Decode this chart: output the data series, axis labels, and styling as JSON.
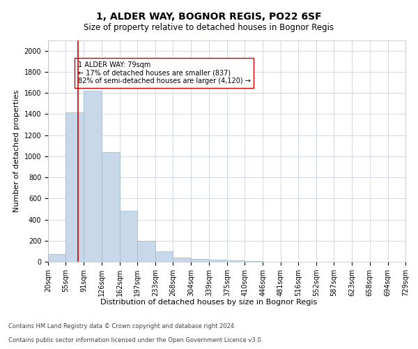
{
  "title": "1, ALDER WAY, BOGNOR REGIS, PO22 6SF",
  "subtitle": "Size of property relative to detached houses in Bognor Regis",
  "xlabel": "Distribution of detached houses by size in Bognor Regis",
  "ylabel": "Number of detached properties",
  "footer_line1": "Contains HM Land Registry data © Crown copyright and database right 2024.",
  "footer_line2": "Contains public sector information licensed under the Open Government Licence v3.0.",
  "annotation_line1": "1 ALDER WAY: 79sqm",
  "annotation_line2": "← 17% of detached houses are smaller (837)",
  "annotation_line3": "82% of semi-detached houses are larger (4,120) →",
  "bar_color": "#c8d8e8",
  "bar_edge_color": "#a0b8cc",
  "grid_color": "#d0d8e8",
  "redline_color": "#cc0000",
  "annotation_box_color": "#ffffff",
  "annotation_box_edge": "#cc0000",
  "bins": [
    20,
    55,
    91,
    126,
    162,
    197,
    233,
    268,
    304,
    339,
    375,
    410,
    446,
    481,
    516,
    552,
    587,
    623,
    658,
    694,
    729
  ],
  "counts": [
    75,
    1415,
    1620,
    1040,
    480,
    200,
    100,
    40,
    25,
    20,
    15,
    5,
    0,
    0,
    0,
    0,
    0,
    0,
    0,
    0
  ],
  "property_size": 79,
  "ylim": [
    0,
    2100
  ],
  "yticks": [
    0,
    200,
    400,
    600,
    800,
    1000,
    1200,
    1400,
    1600,
    1800,
    2000
  ],
  "title_fontsize": 10,
  "subtitle_fontsize": 8.5,
  "ylabel_fontsize": 8,
  "xlabel_fontsize": 8,
  "tick_fontsize": 7,
  "annotation_fontsize": 7,
  "footer_fontsize": 6
}
